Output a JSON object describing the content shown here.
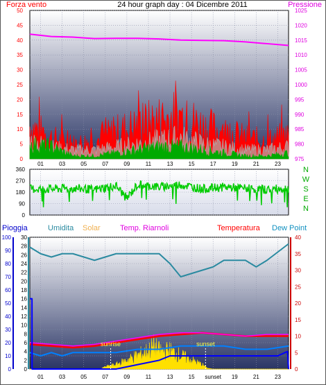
{
  "chart_data": [
    {
      "type": "line",
      "panel": "wind-pressure",
      "title": "24 hour graph day : 04 Dicembre 2011",
      "left_axis_label": "Forza vento",
      "right_axis_label": "Pressione",
      "left_ylim": [
        0,
        50
      ],
      "left_ticks": [
        "0",
        "5",
        "10",
        "15",
        "20",
        "25",
        "30",
        "35",
        "40",
        "45",
        "50"
      ],
      "right_ylim": [
        975,
        1025
      ],
      "right_ticks": [
        "975",
        "980",
        "985",
        "990",
        "995",
        "1000",
        "1005",
        "1010",
        "1015",
        "1020",
        "1025"
      ],
      "x_ticks": [
        "01",
        "03",
        "05",
        "07",
        "09",
        "11",
        "13",
        "15",
        "17",
        "19",
        "21",
        "23"
      ],
      "grid": true,
      "colors": {
        "gust": "#ff0000",
        "speed": "#00aa00",
        "average": "#b0b0b0",
        "pressure": "#ff00ff"
      },
      "series": [
        {
          "key": "pressure",
          "x": [
            0,
            2,
            4,
            6,
            8,
            10,
            12,
            14,
            16,
            18,
            20,
            22,
            24
          ],
          "values": [
            1017,
            1016.2,
            1016,
            1015.5,
            1015.6,
            1015.6,
            1015.4,
            1015,
            1014.9,
            1014.8,
            1014.4,
            1013.8,
            1013.2
          ]
        },
        {
          "key": "gust",
          "x": [
            0,
            2,
            4,
            6,
            8,
            10,
            12,
            14,
            16,
            18,
            20,
            22,
            24
          ],
          "values": [
            11,
            7,
            5,
            6,
            9,
            11,
            13,
            14,
            11,
            9,
            7,
            6,
            8
          ]
        },
        {
          "key": "speed",
          "x": [
            0,
            2,
            4,
            6,
            8,
            10,
            12,
            14,
            16,
            18,
            20,
            22,
            24
          ],
          "values": [
            5,
            4,
            1,
            1,
            2,
            3,
            4,
            4,
            3,
            2,
            1,
            1,
            2
          ]
        },
        {
          "key": "average",
          "x": [
            0,
            2,
            4,
            6,
            8,
            10,
            12,
            14,
            16,
            18,
            20,
            22,
            24
          ],
          "values": [
            6,
            4,
            3,
            3,
            4,
            5,
            6,
            7,
            5,
            4,
            3,
            3,
            4
          ]
        }
      ]
    },
    {
      "type": "line",
      "panel": "wind-direction",
      "left_ylim": [
        0,
        360
      ],
      "left_ticks": [
        "0",
        "90",
        "180",
        "270",
        "360"
      ],
      "compass_labels": [
        "N",
        "W",
        "S",
        "E",
        "N"
      ],
      "grid": true,
      "colors": {
        "direction": "#00cc00"
      },
      "series": [
        {
          "key": "direction",
          "x": [
            0,
            2,
            4,
            6,
            8,
            9,
            10,
            12,
            14,
            16,
            18,
            20,
            22,
            24
          ],
          "values": [
            205,
            205,
            210,
            200,
            230,
            130,
            240,
            220,
            240,
            205,
            220,
            210,
            200,
            210
          ]
        }
      ]
    },
    {
      "type": "line",
      "panel": "weather",
      "legend": {
        "rain": "Pioggia",
        "humidity": "Umidita",
        "solar": "Solar",
        "indoor_temp": "Temp. Riarnoli",
        "temperature": "Temperatura",
        "dew_point": "Dew Point"
      },
      "rain_ylim": [
        0,
        100
      ],
      "rain_ticks": [
        "0",
        "10",
        "20",
        "30",
        "40",
        "50",
        "60",
        "70",
        "80",
        "90",
        "100"
      ],
      "humidity_ylim": [
        0,
        30
      ],
      "humidity_ticks": [
        "0",
        "2",
        "4",
        "6",
        "8",
        "10",
        "12",
        "14",
        "16",
        "18",
        "20",
        "22",
        "24",
        "26",
        "28",
        "30"
      ],
      "temp_ylim": [
        0,
        40
      ],
      "temp_ticks": [
        "0",
        "5",
        "10",
        "15",
        "20",
        "25",
        "30",
        "35",
        "40"
      ],
      "x_ticks": [
        "01",
        "03",
        "05",
        "07",
        "09",
        "11",
        "13",
        "15",
        "sunset",
        "19",
        "21",
        "23"
      ],
      "annotations": {
        "sunrise": "sunrise",
        "sunset": "sunset"
      },
      "sunrise_hour": 7.5,
      "sunset_hour": 16.3,
      "grid": true,
      "colors": {
        "humidity": "#2a8aa0",
        "temperature": "#ff0000",
        "indoor_temp": "#ff00ff",
        "dew_point": "#0080ff",
        "rain": "#0000ff",
        "solar": "#ffe000"
      },
      "series": [
        {
          "key": "humidity",
          "x": [
            0,
            1,
            2,
            3,
            4,
            6,
            8,
            10,
            12,
            13,
            14,
            15,
            16,
            17,
            18,
            20,
            21,
            22,
            24
          ],
          "values": [
            37,
            35,
            34,
            35,
            35,
            33,
            35,
            35,
            35,
            32,
            28,
            29,
            30,
            31,
            33,
            33,
            31,
            33,
            38
          ]
        },
        {
          "key": "temperature",
          "x": [
            0,
            2,
            4,
            6,
            8,
            10,
            12,
            14,
            16,
            18,
            20,
            22,
            24
          ],
          "values": [
            7.5,
            7,
            6.5,
            7,
            8,
            9,
            10,
            10.5,
            11,
            10.5,
            10,
            10,
            10
          ]
        },
        {
          "key": "indoor_temp",
          "x": [
            0,
            2,
            4,
            6,
            8,
            10,
            12,
            14,
            16,
            18,
            20,
            22,
            24
          ],
          "values": [
            8,
            7.5,
            7,
            7.5,
            8.5,
            9.5,
            10.5,
            11,
            11,
            10.5,
            10,
            10.5,
            10.5
          ]
        },
        {
          "key": "dew_point",
          "x": [
            0,
            1,
            2,
            3,
            4,
            6,
            8,
            10,
            12,
            14,
            16,
            18,
            20,
            22,
            24
          ],
          "values": [
            5,
            4,
            5,
            4,
            5,
            5,
            5,
            6,
            6,
            7,
            7,
            7,
            6,
            6,
            7
          ]
        },
        {
          "key": "rain",
          "x": [
            0,
            0.2,
            0.21,
            8,
            10,
            12,
            13,
            15,
            18,
            20,
            22,
            23,
            23.9,
            24
          ],
          "values": [
            16,
            16,
            0,
            0,
            1,
            2,
            3,
            3,
            3,
            3,
            3,
            3,
            4,
            0
          ]
        },
        {
          "key": "solar",
          "x": [
            0,
            6.5,
            7,
            8,
            9,
            10,
            11,
            11.5,
            12,
            12.5,
            13,
            14,
            15,
            16,
            16.5,
            17,
            24
          ],
          "values": [
            0,
            0,
            0.5,
            1,
            2,
            3,
            4,
            5,
            4,
            4,
            4,
            3,
            2,
            1,
            0.2,
            0,
            0
          ]
        }
      ]
    }
  ]
}
